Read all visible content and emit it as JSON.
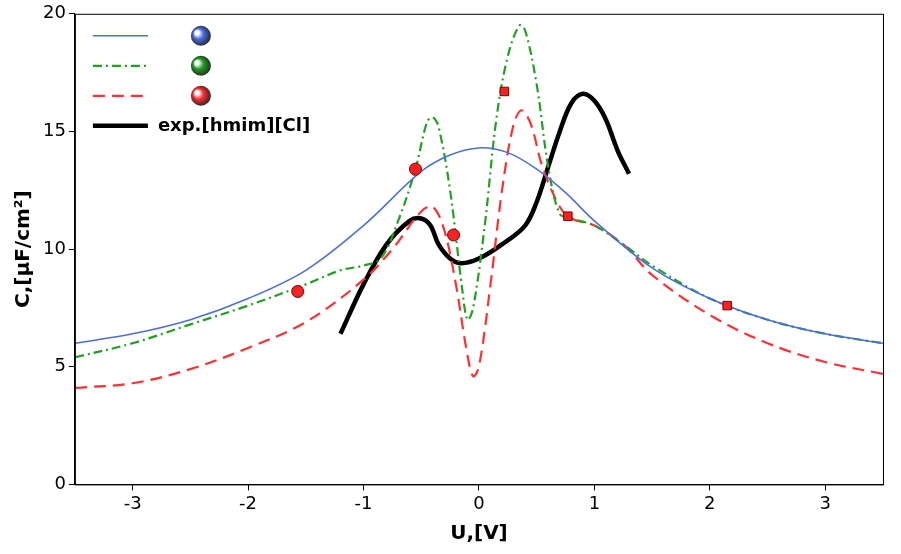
{
  "chart_data": {
    "type": "line",
    "x_label": "U,[V]",
    "y_label": "C,[μF/cm²]",
    "xlim": [
      -3.5,
      3.5
    ],
    "xticks": [
      -3,
      -2,
      -1,
      0,
      1,
      2,
      3
    ],
    "ylim": [
      0,
      20
    ],
    "yticks": [
      0,
      5,
      10,
      15,
      20
    ],
    "grid": false,
    "legend": "upper left",
    "series": [
      {
        "color": "#4a6ee0",
        "line_style": "solid",
        "x": [
          -3.5,
          -3,
          -2.5,
          -2,
          -1.5,
          -1,
          -0.5,
          -0.25,
          0,
          0.25,
          0.5,
          0.75,
          1,
          1.5,
          2,
          2.5,
          3,
          3.5
        ],
        "values": [
          6.0,
          6.4,
          7.0,
          7.9,
          9.1,
          11.0,
          13.3,
          14.0,
          14.3,
          14.1,
          13.4,
          12.4,
          11.2,
          9.2,
          7.9,
          7.0,
          6.4,
          6.0
        ]
      },
      {
        "color": "#22a022",
        "line_style": "dashdot",
        "x": [
          -3.5,
          -3,
          -2.5,
          -2,
          -1.5,
          -1.2,
          -1,
          -0.85,
          -0.7,
          -0.55,
          -0.45,
          -0.4,
          -0.35,
          -0.25,
          -0.15,
          -0.1,
          -0.05,
          0.05,
          0.15,
          0.25,
          0.35,
          0.4,
          0.5,
          0.6,
          0.7,
          0.8,
          1,
          1.25,
          1.5,
          2,
          2.5,
          3,
          3.5
        ],
        "values": [
          5.4,
          6.0,
          6.8,
          7.6,
          8.5,
          9.1,
          9.3,
          9.6,
          11.2,
          13.4,
          15.4,
          15.6,
          15.2,
          12.5,
          8.5,
          7.0,
          7.5,
          11.0,
          15.5,
          18.2,
          19.5,
          19.3,
          17.0,
          13.5,
          11.5,
          11.3,
          11.0,
          10.2,
          9.3,
          7.9,
          7.0,
          6.4,
          6.0
        ]
      },
      {
        "color": "#ff3030",
        "line_style": "dashed",
        "x": [
          -3.5,
          -3,
          -2.5,
          -2,
          -1.5,
          -1,
          -0.75,
          -0.5,
          -0.4,
          -0.3,
          -0.2,
          -0.1,
          -0.05,
          0,
          0.1,
          0.2,
          0.3,
          0.37,
          0.45,
          0.55,
          0.7,
          0.8,
          1,
          1.25,
          1.5,
          2,
          2.5,
          3,
          3.5
        ],
        "values": [
          4.1,
          4.3,
          4.9,
          5.8,
          6.9,
          8.7,
          10.0,
          11.6,
          11.8,
          10.8,
          8.5,
          5.5,
          4.6,
          5.0,
          8.5,
          12.5,
          15.3,
          15.9,
          15.3,
          13.5,
          11.8,
          11.3,
          11.0,
          10.2,
          8.9,
          7.2,
          6.0,
          5.2,
          4.7
        ]
      },
      {
        "name": "exp.[hmim][Cl]",
        "color": "#000000",
        "line_style": "solid",
        "x": [
          -1.2,
          -1,
          -0.8,
          -0.6,
          -0.5,
          -0.42,
          -0.35,
          -0.25,
          -0.15,
          0,
          0.2,
          0.4,
          0.5,
          0.6,
          0.7,
          0.8,
          0.9,
          1,
          1.1,
          1.2,
          1.3
        ],
        "values": [
          6.4,
          8.5,
          10.2,
          11.2,
          11.3,
          11.0,
          10.2,
          9.6,
          9.4,
          9.6,
          10.2,
          11.0,
          12.0,
          13.5,
          15.0,
          16.2,
          16.6,
          16.3,
          15.5,
          14.2,
          13.2
        ]
      },
      {
        "type": "scatter",
        "marker": "circle",
        "color": "#ff2020",
        "x": [
          -1.57,
          -0.55,
          -0.22
        ],
        "values": [
          8.2,
          13.4,
          10.6
        ]
      },
      {
        "type": "scatter",
        "marker": "square",
        "color": "#ff2020",
        "x": [
          0.22,
          0.77,
          2.15
        ],
        "values": [
          16.7,
          11.4,
          7.6
        ]
      }
    ]
  }
}
